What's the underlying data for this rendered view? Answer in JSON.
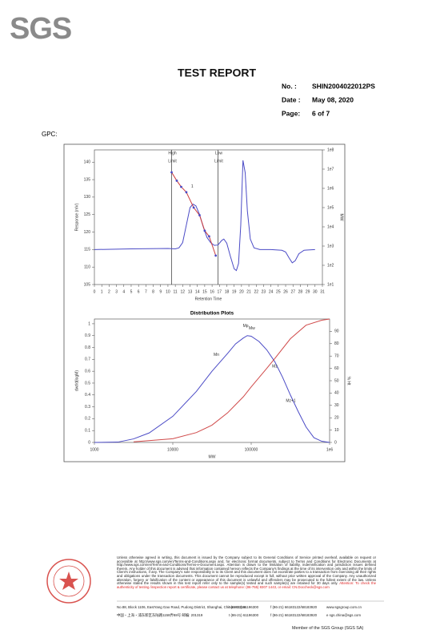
{
  "header": {
    "logo": "SGS",
    "title": "TEST REPORT",
    "fields": [
      {
        "label": "No.  :",
        "value": "SHIN2004022012PS"
      },
      {
        "label": "Date :",
        "value": "May 08, 2020"
      },
      {
        "label": "Page:",
        "value": "6 of 7"
      }
    ]
  },
  "section_label": "GPC:",
  "gpc_chart": {
    "type": "line",
    "x_label": "Retention Time",
    "y_label": "Response (mV)",
    "y2_label": "MW",
    "xlim": [
      0,
      31
    ],
    "xticks": [
      0,
      1,
      2,
      3,
      4,
      5,
      6,
      7,
      8,
      9,
      10,
      11,
      12,
      13,
      14,
      15,
      16,
      17,
      18,
      19,
      20,
      21,
      22,
      23,
      24,
      25,
      26,
      27,
      28,
      29,
      30,
      31
    ],
    "ylim": [
      105,
      143.5
    ],
    "yticks": [
      105,
      110,
      115,
      120,
      125,
      130,
      135,
      140
    ],
    "y2lim": [
      10,
      100000000
    ],
    "y2_log": true,
    "y2ticks": [
      {
        "value": 10,
        "label": "1e1"
      },
      {
        "value": 100,
        "label": "1e2"
      },
      {
        "value": 1000,
        "label": "1e3"
      },
      {
        "value": 10000,
        "label": "1e4"
      },
      {
        "value": 100000,
        "label": "1e5"
      },
      {
        "value": 1000000,
        "label": "1e6"
      },
      {
        "value": 10000000,
        "label": "1e7"
      },
      {
        "value": 100000000,
        "label": "1e8"
      }
    ],
    "limits": [
      {
        "label": [
          "High",
          "Limit"
        ],
        "x": 10.5
      },
      {
        "label": [
          "Low",
          "Limit"
        ],
        "x": 16.8
      }
    ],
    "annotations": [
      {
        "text": "1",
        "x": 13.3,
        "y": 133
      }
    ],
    "series": [
      {
        "color": "#4b4bc6",
        "x": [
          0,
          5,
          10,
          11,
          11.5,
          12,
          12.5,
          13,
          13.4,
          13.8,
          14.3,
          14.8,
          15.3,
          15.8,
          16.3,
          16.8,
          17.3,
          17.6,
          18,
          18.5,
          19,
          19.3,
          19.6,
          19.9,
          20.2,
          20.5,
          20.8,
          21.2,
          21.7,
          22.5,
          24,
          25.5,
          26,
          26.5,
          26.9,
          27.3,
          27.8,
          28.5,
          30
        ],
        "values": [
          115,
          115.2,
          115.3,
          115.2,
          115.5,
          117,
          122,
          127,
          128,
          127.5,
          125,
          121.5,
          118.5,
          117,
          116.2,
          116.3,
          117.6,
          118,
          116.8,
          113,
          109.5,
          109,
          111,
          122,
          140.5,
          137,
          126,
          118,
          115.5,
          115,
          115,
          114.8,
          114.3,
          112.5,
          111.2,
          111.8,
          113.8,
          114.8,
          115
        ]
      },
      {
        "color": "#cc3b3b",
        "axis": "y2",
        "markers": true,
        "x": [
          10.5,
          11.2,
          11.8,
          12.5,
          13.5,
          14.3,
          15,
          15.6,
          16.5
        ],
        "values": [
          6800000,
          2500000,
          1200000,
          630000,
          100000,
          40000,
          6300,
          3200,
          320
        ]
      }
    ]
  },
  "distribution_chart": {
    "type": "line",
    "title": "Distribution Plots",
    "x_label": "MW",
    "y_label": "dwt/d(logM)",
    "y2_label": "% Ht",
    "xlim": [
      1000,
      1000000
    ],
    "x_log": true,
    "xticks": [
      1000,
      10000,
      100000,
      {
        "value": 1000000,
        "label": "1e6"
      }
    ],
    "ylim": [
      0,
      1.04
    ],
    "yticks": [
      0,
      0.1,
      0.2,
      0.3,
      0.4,
      0.5,
      0.6,
      0.7,
      0.8,
      0.9,
      1
    ],
    "y2lim": [
      0,
      100
    ],
    "y2ticks": [
      0,
      10,
      20,
      30,
      40,
      50,
      60,
      70,
      80,
      90
    ],
    "annotations": [
      {
        "text": "Mn",
        "x": 36000,
        "y": 0.74
      },
      {
        "text": "Mp",
        "x": 85000,
        "y": 0.98
      },
      {
        "text": "Mw",
        "x": 102000,
        "y": 0.96
      },
      {
        "text": "Mz",
        "x": 200000,
        "y": 0.64
      },
      {
        "text": "Mz+1",
        "x": 320000,
        "y": 0.35
      }
    ],
    "series": [
      {
        "color": "#4b4bc6",
        "x": [
          1000,
          2000,
          3160,
          5000,
          10000,
          20000,
          31600,
          50000,
          63100,
          79400,
          89100,
          100000,
          126000,
          158000,
          200000,
          251000,
          316000,
          398000,
          501000,
          631000,
          794000,
          1000000
        ],
        "values": [
          0,
          0.003,
          0.03,
          0.08,
          0.22,
          0.43,
          0.6,
          0.75,
          0.83,
          0.88,
          0.9,
          0.895,
          0.85,
          0.78,
          0.68,
          0.55,
          0.4,
          0.26,
          0.13,
          0.04,
          0.01,
          0
        ]
      },
      {
        "color": "#d04a4a",
        "axis": "y2",
        "x": [
          3160,
          10000,
          20000,
          31600,
          50000,
          79400,
          100000,
          158000,
          200000,
          316000,
          501000,
          794000,
          1000000
        ],
        "values": [
          0.5,
          3,
          8,
          14,
          24,
          37,
          45,
          60,
          68,
          84,
          95,
          99,
          100
        ]
      }
    ]
  },
  "footer": {
    "disclaimer": "Unless otherwise agreed in writing, this document is issued by the Company subject to its General Conditions of Service printed overleaf, available on request or accessible at http://www.sgs.com/en/Terms-and-Conditions.aspx and, for electronic format documents, subject to Terms and Conditions for Electronic Documents at http://www.sgs.com/en/Terms-and-Conditions/Terms-e-Document.aspx. Attention is drawn to the limitation of liability, indemnification and jurisdiction issues defined therein. Any holder of this document is advised that information contained hereon reflects the Company's findings at the time of its intervention only and within the limits of Client's instructions, if any. The Company's sole responsibility is to its Client and this document does not exonerate parties to a transaction from exercising all their rights and obligations under the transaction documents. This document cannot be reproduced except in full, without prior written approval of the Company. Any unauthorized alteration, forgery or falsification of the content or appearance of this document is unlawful and offenders may be prosecuted to the fullest extent of the law. Unless otherwise stated the results shown in this test report refer only to the sample(s) tested and such sample(s) are retained for 30 days only.",
    "attention": "Attention: To check the authenticity of testing /inspection report & certificate, please contact us at telephone: (86-755) 8307 1443, or email: CN.Doccheck@sgs.com",
    "address_lines": [
      [
        "No.88, Block 1106, EastYang Gao Road, Pudong District, Shanghai, China 201319",
        "t (86-21) 61196300",
        "f (86-21) 66183122/68183920",
        "www.sgsgroup.com.cn"
      ],
      [
        "中国・上海・浦东新区东陆路1158弄88号   邮编: 201319",
        "t (86-21) 61196300",
        "f (86-21) 66183122/68183920",
        "e sgs.china@sgs.com"
      ]
    ],
    "member": "Member of the SGS Group (SGS SA)"
  }
}
